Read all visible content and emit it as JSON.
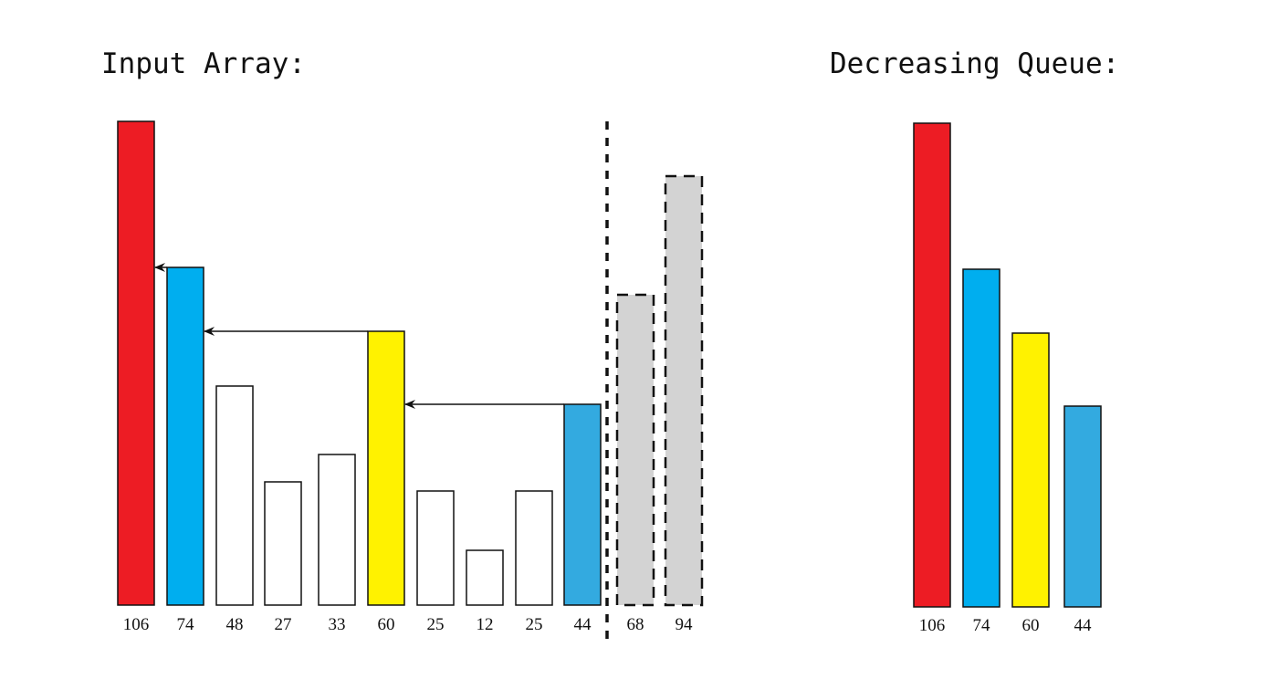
{
  "input_title": "Input Array:",
  "queue_title": "Decreasing Queue:",
  "colors": {
    "red": "#ED1C24",
    "blue": "#00AEEF",
    "yellow": "#FFF200",
    "lightblue": "#33AAE0",
    "gray": "#D3D3D3",
    "white": "#FFFFFF"
  },
  "input_array": [
    {
      "value": "106",
      "n": 106,
      "color": "red",
      "state": "in-queue"
    },
    {
      "value": "74",
      "n": 74,
      "color": "blue",
      "state": "in-queue"
    },
    {
      "value": "48",
      "n": 48,
      "color": "white",
      "state": "processed"
    },
    {
      "value": "27",
      "n": 27,
      "color": "white",
      "state": "processed"
    },
    {
      "value": "33",
      "n": 33,
      "color": "white",
      "state": "processed"
    },
    {
      "value": "60",
      "n": 60,
      "color": "yellow",
      "state": "in-queue"
    },
    {
      "value": "25",
      "n": 25,
      "color": "white",
      "state": "processed"
    },
    {
      "value": "12",
      "n": 12,
      "color": "white",
      "state": "processed"
    },
    {
      "value": "25",
      "n": 25,
      "color": "white",
      "state": "processed"
    },
    {
      "value": "44",
      "n": 44,
      "color": "lightblue",
      "state": "in-queue"
    },
    {
      "value": "68",
      "n": 68,
      "color": "gray",
      "state": "pending"
    },
    {
      "value": "94",
      "n": 94,
      "color": "gray",
      "state": "pending"
    }
  ],
  "arrows": [
    [
      1,
      0
    ],
    [
      5,
      1
    ],
    [
      9,
      5
    ]
  ],
  "queue": [
    {
      "value": "106",
      "n": 106,
      "color": "red"
    },
    {
      "value": "74",
      "n": 74,
      "color": "blue"
    },
    {
      "value": "60",
      "n": 60,
      "color": "yellow"
    },
    {
      "value": "44",
      "n": 44,
      "color": "lightblue"
    }
  ]
}
